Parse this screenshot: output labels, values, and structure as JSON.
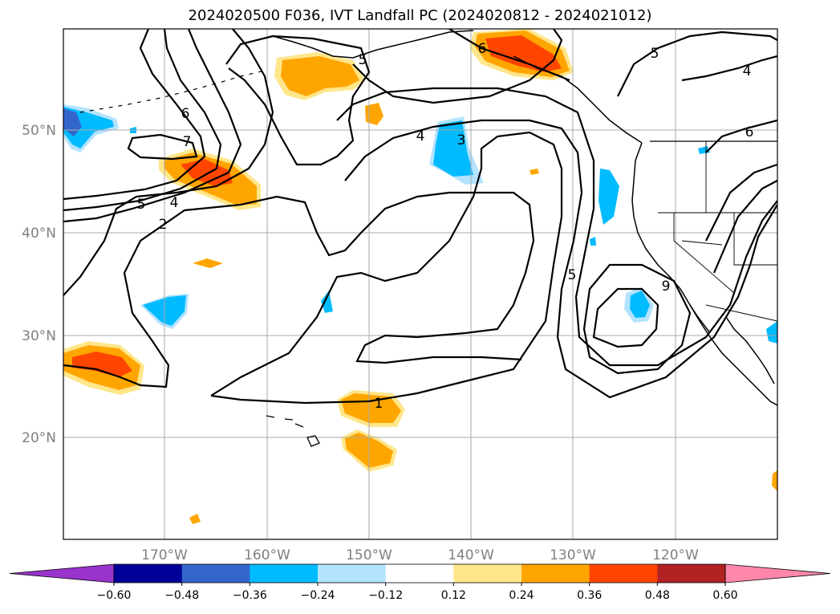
{
  "title": "2024020500 F036, IVT Landfall PC (2024020812 - 2024021012)",
  "latitude_labels": [
    "50°N",
    "40°N",
    "30°N",
    "20°N"
  ],
  "longitude_labels": [
    "170°W",
    "160°W",
    "150°W",
    "140°W",
    "130°W",
    "120°W"
  ],
  "colorbar": {
    "tick_labels": [
      "−0.60",
      "−0.48",
      "−0.36",
      "−0.24",
      "−0.12",
      "0.12",
      "0.24",
      "0.36",
      "0.48",
      "0.60"
    ],
    "colors": [
      "#9933cc",
      "#000099",
      "#3366cc",
      "#00bbff",
      "#b3e3ff",
      "#ffffff",
      "#ffe68a",
      "#ffa500",
      "#ff4500",
      "#b22222",
      "#ff88aa"
    ]
  },
  "contour_labels": [
    "6",
    "7",
    "5",
    "4",
    "2",
    "5",
    "6",
    "4",
    "3",
    "5",
    "4",
    "6",
    "5",
    "9",
    "1"
  ]
}
